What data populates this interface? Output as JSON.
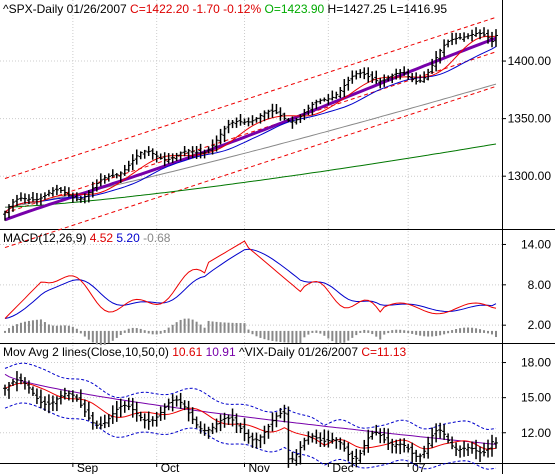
{
  "chart_data": [
    {
      "type": "candlestick",
      "title": "^SPX-Daily",
      "header": [
        {
          "text": "^SPX-Daily",
          "color": "#000000"
        },
        {
          "text": "01/26/2007",
          "color": "#000000"
        },
        {
          "text": "C=1422.20",
          "color": "#dd0000"
        },
        {
          "text": "-1.70",
          "color": "#dd0000"
        },
        {
          "text": "-0.12%",
          "color": "#dd0000"
        },
        {
          "text": "O=1423.90",
          "color": "#00aa00"
        },
        {
          "text": "H=1427.25",
          "color": "#000000"
        },
        {
          "text": "L=1416.95",
          "color": "#000000"
        }
      ],
      "ylim": [
        1255,
        1440
      ],
      "y_ticks": [
        1300.0,
        1350.0,
        1400.0
      ],
      "y_tick_labels": [
        "1300.00",
        "1350.00",
        "1400.00"
      ],
      "close_start": 1267,
      "close_end": 1422.2,
      "ma_colors": {
        "ma10": "#ee0000",
        "ma20": "#0000cc",
        "ma50": "#7700aa",
        "ma100": "#888888",
        "ma200": "#007700"
      },
      "channel_color": "#ee0000",
      "channel_offsets": [
        30,
        -30
      ],
      "channel_points": [
        [
          0,
          1268
        ],
        [
          123,
          1408
        ]
      ],
      "ma100_range": [
        1273,
        1380
      ],
      "ma200_range": [
        1273,
        1328
      ]
    },
    {
      "type": "macd",
      "label": "MACD(12,26,9)",
      "values": [
        {
          "text": "4.52",
          "color": "#dd0000"
        },
        {
          "text": "5.20",
          "color": "#0000cc"
        },
        {
          "text": "-0.68",
          "color": "#888888"
        }
      ],
      "ylim": [
        -0.5,
        16
      ],
      "y_ticks": [
        2.0,
        8.0,
        14.0
      ],
      "y_tick_labels": [
        "2.00",
        "8.00",
        "14.00"
      ],
      "macd_color": "#ee0000",
      "signal_color": "#0000cc",
      "hist_color": "#888888"
    },
    {
      "type": "line",
      "label": "Mov Avg 2 lines(Close,10,50,0)",
      "values": [
        {
          "text": "10.61",
          "color": "#dd0000"
        },
        {
          "text": "10.91",
          "color": "#7700aa"
        },
        {
          "text": "^VIX-Daily",
          "color": "#000000"
        },
        {
          "text": "01/26/2007",
          "color": "#000000"
        },
        {
          "text": "C=11.13",
          "color": "#dd0000"
        }
      ],
      "ylim": [
        9.5,
        19.5
      ],
      "y_ticks": [
        12.0,
        15.0,
        18.0
      ],
      "y_tick_labels": [
        "12.00",
        "15.00",
        "18.00"
      ],
      "vix_start": 15.8,
      "vix_end": 11.13,
      "ma10_color": "#ee0000",
      "ma50_color": "#7700aa",
      "band_color": "#0000cc"
    }
  ],
  "x_axis": {
    "month_labels": [
      "Sep",
      "Oct",
      "Nov",
      "Dec",
      "07"
    ],
    "month_bar_index": [
      17,
      38,
      60,
      81,
      101
    ]
  },
  "bars_count": 124
}
